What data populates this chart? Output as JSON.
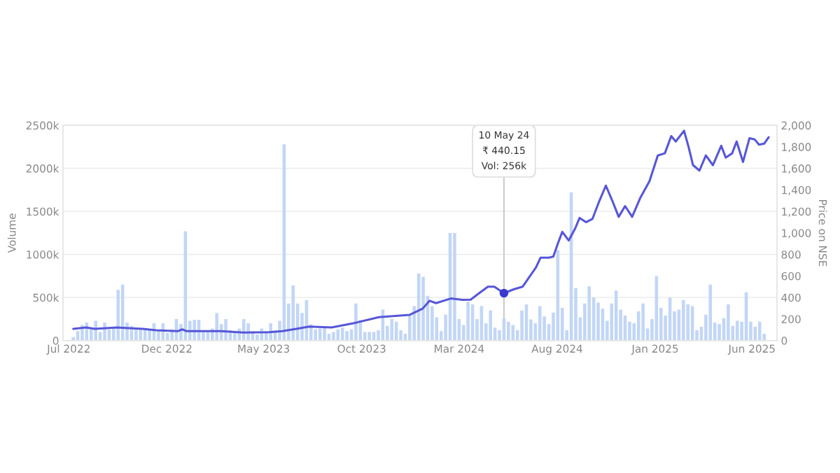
{
  "chart_data": {
    "type": "bar",
    "x": [
      "2022-07-08",
      "2022-07-15",
      "2022-07-22",
      "2022-07-29",
      "2022-08-05",
      "2022-08-12",
      "2022-08-19",
      "2022-08-26",
      "2022-09-02",
      "2022-09-09",
      "2022-09-16",
      "2022-09-23",
      "2022-09-30",
      "2022-10-07",
      "2022-10-14",
      "2022-10-21",
      "2022-10-28",
      "2022-11-04",
      "2022-11-11",
      "2022-11-18",
      "2022-11-25",
      "2022-12-02",
      "2022-12-09",
      "2022-12-16",
      "2022-12-23",
      "2022-12-30",
      "2023-01-06",
      "2023-01-13",
      "2023-01-20",
      "2023-01-27",
      "2023-02-03",
      "2023-02-10",
      "2023-02-17",
      "2023-02-24",
      "2023-03-03",
      "2023-03-10",
      "2023-03-17",
      "2023-03-24",
      "2023-03-31",
      "2023-04-07",
      "2023-04-14",
      "2023-04-21",
      "2023-04-28",
      "2023-05-05",
      "2023-05-12",
      "2023-05-19",
      "2023-05-26",
      "2023-06-02",
      "2023-06-09",
      "2023-06-16",
      "2023-06-23",
      "2023-06-30",
      "2023-07-07",
      "2023-07-14",
      "2023-07-21",
      "2023-07-28",
      "2023-08-04",
      "2023-08-11",
      "2023-08-18",
      "2023-08-25",
      "2023-09-01",
      "2023-09-08",
      "2023-09-15",
      "2023-09-22",
      "2023-09-29",
      "2023-10-06",
      "2023-10-13",
      "2023-10-20",
      "2023-10-27",
      "2023-11-03",
      "2023-11-10",
      "2023-11-17",
      "2023-11-24",
      "2023-12-01",
      "2023-12-08",
      "2023-12-15",
      "2023-12-22",
      "2023-12-29",
      "2024-01-05",
      "2024-01-12",
      "2024-01-19",
      "2024-01-26",
      "2024-02-02",
      "2024-02-09",
      "2024-02-16",
      "2024-02-23",
      "2024-03-01",
      "2024-03-08",
      "2024-03-15",
      "2024-03-22",
      "2024-03-29",
      "2024-04-05",
      "2024-04-12",
      "2024-04-19",
      "2024-04-26",
      "2024-05-03",
      "2024-05-10",
      "2024-05-17",
      "2024-05-24",
      "2024-05-31",
      "2024-06-07",
      "2024-06-14",
      "2024-06-21",
      "2024-06-28",
      "2024-07-05",
      "2024-07-12",
      "2024-07-19",
      "2024-07-26",
      "2024-08-02",
      "2024-08-09",
      "2024-08-16",
      "2024-08-23",
      "2024-08-30",
      "2024-09-06",
      "2024-09-13",
      "2024-09-20",
      "2024-09-27",
      "2024-10-04",
      "2024-10-11",
      "2024-10-18",
      "2024-10-25",
      "2024-11-01",
      "2024-11-08",
      "2024-11-15",
      "2024-11-22",
      "2024-11-29",
      "2024-12-06",
      "2024-12-13",
      "2024-12-20",
      "2024-12-27",
      "2025-01-03",
      "2025-01-10",
      "2025-01-17",
      "2025-01-24",
      "2025-01-31",
      "2025-02-07",
      "2025-02-14",
      "2025-02-21",
      "2025-02-28",
      "2025-03-07",
      "2025-03-14",
      "2025-03-21",
      "2025-03-28",
      "2025-04-04",
      "2025-04-11",
      "2025-04-18",
      "2025-04-25",
      "2025-05-02",
      "2025-05-09",
      "2025-05-16",
      "2025-05-23",
      "2025-05-30",
      "2025-06-06",
      "2025-06-13",
      "2025-06-20"
    ],
    "series": [
      {
        "color": "#c2d6f6",
        "values": [
          40,
          110,
          180,
          210,
          150,
          230,
          100,
          210,
          130,
          150,
          590,
          650,
          210,
          170,
          150,
          140,
          130,
          130,
          200,
          130,
          200,
          90,
          130,
          250,
          190,
          1270,
          230,
          240,
          240,
          100,
          110,
          140,
          320,
          190,
          250,
          120,
          110,
          140,
          250,
          200,
          110,
          70,
          140,
          110,
          200,
          120,
          230,
          2280,
          430,
          640,
          430,
          320,
          470,
          190,
          130,
          140,
          150,
          80,
          100,
          130,
          150,
          110,
          130,
          430,
          240,
          100,
          100,
          100,
          120,
          360,
          170,
          250,
          220,
          120,
          80,
          290,
          400,
          780,
          740,
          520,
          400,
          270,
          110,
          300,
          1250,
          1250,
          250,
          180,
          450,
          420,
          250,
          400,
          200,
          350,
          150,
          120,
          256,
          220,
          180,
          120,
          350,
          420,
          245,
          200,
          400,
          280,
          190,
          325,
          1050,
          380,
          120,
          1720,
          610,
          270,
          430,
          630,
          500,
          440,
          370,
          230,
          430,
          580,
          360,
          290,
          220,
          200,
          340,
          430,
          140,
          250,
          750,
          380,
          290,
          500,
          340,
          360,
          470,
          420,
          400,
          120,
          160,
          300,
          650,
          210,
          190,
          260,
          420,
          170,
          230,
          220,
          560,
          220,
          160,
          220,
          80
        ]
      },
      {
        "type": "line",
        "axis": "y2",
        "color": "#5656d8",
        "x": [
          "2022-07-08",
          "2022-07-28",
          "2022-08-11",
          "2022-09-14",
          "2022-09-28",
          "2022-10-25",
          "2022-11-14",
          "2022-12-18",
          "2022-12-25",
          "2023-01-01",
          "2023-01-28",
          "2023-02-24",
          "2023-03-30",
          "2023-05-10",
          "2023-05-30",
          "2023-06-21",
          "2023-07-11",
          "2023-08-15",
          "2023-09-18",
          "2023-10-28",
          "2023-12-15",
          "2024-01-04",
          "2024-01-15",
          "2024-01-25",
          "2024-02-17",
          "2024-03-06",
          "2024-03-19",
          "2024-04-02",
          "2024-04-15",
          "2024-04-25",
          "2024-05-10",
          "2024-05-26",
          "2024-06-08",
          "2024-06-15",
          "2024-06-29",
          "2024-07-06",
          "2024-07-19",
          "2024-07-26",
          "2024-08-02",
          "2024-08-09",
          "2024-08-19",
          "2024-08-29",
          "2024-09-05",
          "2024-09-15",
          "2024-09-25",
          "2024-10-06",
          "2024-10-16",
          "2024-10-26",
          "2024-11-05",
          "2024-11-15",
          "2024-11-26",
          "2024-12-09",
          "2024-12-23",
          "2025-01-05",
          "2025-01-16",
          "2025-01-26",
          "2025-02-02",
          "2025-02-15",
          "2025-02-22",
          "2025-03-01",
          "2025-03-11",
          "2025-03-21",
          "2025-04-01",
          "2025-04-14",
          "2025-04-21",
          "2025-05-01",
          "2025-05-08",
          "2025-05-18",
          "2025-05-28",
          "2025-06-05",
          "2025-06-12",
          "2025-06-20",
          "2025-06-27"
        ],
        "values": [
          109,
          122,
          109,
          122,
          117,
          109,
          96,
          87,
          104,
          87,
          87,
          87,
          74,
          78,
          87,
          109,
          130,
          122,
          161,
          217,
          239,
          296,
          370,
          348,
          391,
          378,
          380,
          443,
          500,
          500,
          440.15,
          478,
          500,
          560,
          680,
          770,
          770,
          780,
          900,
          1010,
          930,
          1040,
          1140,
          1100,
          1130,
          1300,
          1440,
          1300,
          1150,
          1250,
          1150,
          1330,
          1480,
          1720,
          1740,
          1900,
          1850,
          1950,
          1800,
          1630,
          1580,
          1720,
          1630,
          1810,
          1700,
          1740,
          1850,
          1660,
          1880,
          1870,
          1820,
          1830,
          1890
        ]
      }
    ],
    "ylabel": "Volume",
    "y2label": "Price on NSE",
    "xlim": [
      "2022-06-22",
      "2025-07-10"
    ],
    "xticks": [
      {
        "value": "2022-07-01",
        "label": "Jul 2022"
      },
      {
        "value": "2022-12-01",
        "label": "Dec 2022"
      },
      {
        "value": "2023-05-01",
        "label": "May 2023"
      },
      {
        "value": "2023-10-01",
        "label": "Oct 2023"
      },
      {
        "value": "2024-03-01",
        "label": "Mar 2024"
      },
      {
        "value": "2024-08-01",
        "label": "Aug 2024"
      },
      {
        "value": "2025-01-01",
        "label": "Jan 2025"
      },
      {
        "value": "2025-06-01",
        "label": "Jun 2025"
      }
    ],
    "ylim": [
      0,
      2500
    ],
    "yticks": [
      0,
      {
        "value": 500,
        "label": "500k"
      },
      {
        "value": 1000,
        "label": "1000k"
      },
      {
        "value": 1500,
        "label": "1500k"
      },
      {
        "value": 2000,
        "label": "2000k"
      },
      {
        "value": 2500,
        "label": "2500k"
      }
    ],
    "y2lim": [
      0,
      2000
    ],
    "y2ticks": [
      0,
      200,
      400,
      600,
      800,
      {
        "value": 1000,
        "label": "1,000"
      },
      {
        "value": 1200,
        "label": "1,200"
      },
      {
        "value": 1400,
        "label": "1,400"
      },
      {
        "value": 1600,
        "label": "1,600"
      },
      {
        "value": 1800,
        "label": "1,800"
      },
      {
        "value": 2000,
        "label": "2,000"
      }
    ],
    "grid": "y",
    "ref_lines": [
      {
        "axis": "x",
        "value": "2024-05-10",
        "color": "#c8c8c8"
      }
    ],
    "annotations": [
      "10 May 24\n₹ 440.15\nVol: 256k"
    ]
  }
}
